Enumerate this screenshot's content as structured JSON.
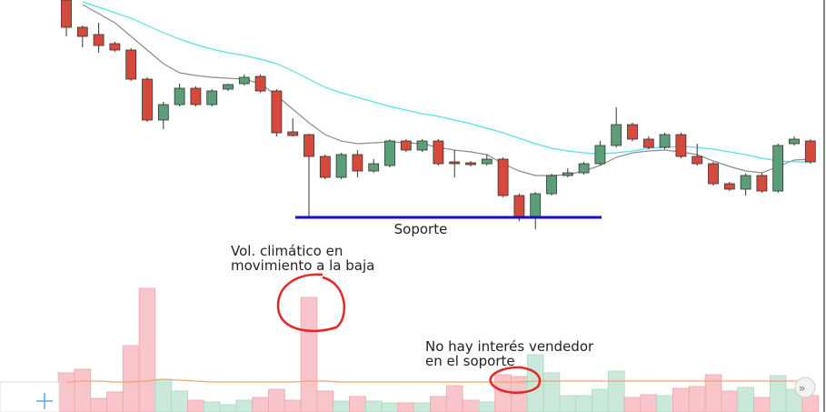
{
  "chart_data": {
    "type": "candlestick",
    "ylim": [
      0,
      300
    ],
    "open": [
      300,
      270,
      262,
      252,
      245,
      213,
      168,
      185,
      203,
      185,
      202,
      208,
      216,
      200,
      155,
      152,
      128,
      105,
      130,
      112,
      118,
      145,
      135,
      145,
      122,
      121,
      120,
      125,
      85,
      60,
      87,
      107,
      110,
      120,
      140,
      163,
      147,
      138,
      152,
      128,
      120,
      98,
      92,
      107,
      90,
      142,
      145
    ],
    "high": [
      300,
      272,
      275,
      254,
      247,
      215,
      188,
      208,
      205,
      202,
      208,
      218,
      218,
      202,
      170,
      153,
      130,
      132,
      135,
      125,
      147,
      147,
      147,
      147,
      135,
      123,
      130,
      127,
      87,
      89,
      109,
      115,
      122,
      145,
      182,
      165,
      150,
      154,
      154,
      142,
      122,
      100,
      109,
      110,
      142,
      150,
      147
    ],
    "low": [
      260,
      248,
      242,
      243,
      211,
      166,
      158,
      183,
      183,
      183,
      200,
      206,
      198,
      150,
      150,
      60,
      103,
      103,
      105,
      110,
      116,
      133,
      133,
      118,
      105,
      117,
      118,
      83,
      57,
      48,
      85,
      105,
      108,
      118,
      138,
      145,
      136,
      136,
      126,
      118,
      96,
      90,
      85,
      88,
      88,
      140,
      120
    ],
    "close": [
      270,
      260,
      250,
      245,
      213,
      168,
      185,
      203,
      185,
      200,
      207,
      215,
      200,
      154,
      151,
      128,
      105,
      130,
      112,
      120,
      145,
      135,
      145,
      120,
      120,
      119,
      125,
      85,
      60,
      87,
      107,
      110,
      120,
      140,
      163,
      147,
      138,
      152,
      128,
      120,
      98,
      92,
      107,
      90,
      140,
      147,
      122
    ],
    "moving_averages": [
      {
        "color": "#8c8c8c",
        "values": [
          null,
          295,
          285,
          275,
          260,
          245,
          230,
          220,
          217,
          215,
          214,
          213,
          208,
          195,
          180,
          165,
          152,
          145,
          142,
          143,
          144,
          143,
          142,
          138,
          135,
          133,
          130,
          120,
          112,
          107,
          107,
          108,
          112,
          118,
          127,
          132,
          134,
          135,
          133,
          130,
          123,
          117,
          112,
          110,
          117,
          124,
          125
        ]
      },
      {
        "color": "#55e0e8",
        "values": [
          null,
          298,
          292,
          286,
          280,
          272,
          264,
          257,
          251,
          246,
          242,
          239,
          235,
          230,
          222,
          213,
          204,
          198,
          193,
          188,
          183,
          179,
          175,
          172,
          168,
          164,
          159,
          154,
          148,
          142,
          137,
          134,
          132,
          131,
          132,
          134,
          137,
          138,
          139,
          138,
          136,
          133,
          130,
          126,
          123,
          122,
          122
        ]
      }
    ],
    "volume": [
      43,
      47,
      15,
      22,
      73,
      136,
      36,
      23,
      13,
      11,
      8,
      13,
      16,
      25,
      13,
      126,
      23,
      12,
      17,
      12,
      10,
      10,
      10,
      17,
      29,
      13,
      11,
      41,
      39,
      63,
      43,
      18,
      18,
      25,
      45,
      16,
      19,
      18,
      26,
      28,
      41,
      23,
      27,
      16,
      40,
      25,
      18
    ],
    "volume_ma": {
      "color": "#f5a26a",
      "values": [
        33,
        34,
        34,
        33,
        33,
        34,
        36,
        35,
        34,
        33,
        33,
        33,
        33,
        33,
        33,
        34,
        34,
        33,
        33,
        33,
        33,
        33,
        33,
        33,
        33,
        33,
        33,
        33,
        33,
        34,
        34,
        34,
        34,
        34,
        34,
        34,
        34,
        34,
        34,
        34,
        34,
        34,
        34,
        34,
        34,
        34,
        34
      ]
    },
    "support": {
      "label": "Soporte",
      "value": 61
    },
    "annotations": [
      {
        "lines": [
          "Vol. climático en",
          "movimiento a la baja"
        ]
      },
      {
        "lines": [
          "No hay interés vendedor",
          "en el soporte"
        ]
      }
    ]
  }
}
